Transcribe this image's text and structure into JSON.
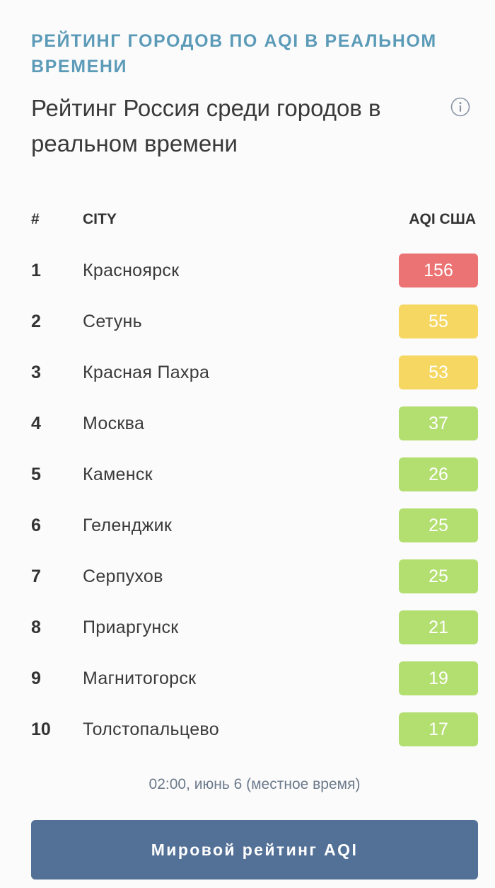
{
  "header": {
    "eyebrow": "Рейтинг городов по AQI в реальном времени",
    "title": "Рейтинг Россия среди городов в реальном времени"
  },
  "table": {
    "columns": {
      "rank": "#",
      "city": "CITY",
      "aqi": "AQI США"
    },
    "rows": [
      {
        "rank": "1",
        "city": "Красноярск",
        "aqi": "156",
        "color": "#ec7373"
      },
      {
        "rank": "2",
        "city": "Сетунь",
        "aqi": "55",
        "color": "#f6d762"
      },
      {
        "rank": "3",
        "city": "Красная Пахра",
        "aqi": "53",
        "color": "#f6d762"
      },
      {
        "rank": "4",
        "city": "Москва",
        "aqi": "37",
        "color": "#b3de70"
      },
      {
        "rank": "5",
        "city": "Каменск",
        "aqi": "26",
        "color": "#b3de70"
      },
      {
        "rank": "6",
        "city": "Геленджик",
        "aqi": "25",
        "color": "#b3de70"
      },
      {
        "rank": "7",
        "city": "Серпухов",
        "aqi": "25",
        "color": "#b3de70"
      },
      {
        "rank": "8",
        "city": "Приаргунск",
        "aqi": "21",
        "color": "#b3de70"
      },
      {
        "rank": "9",
        "city": "Магнитогорск",
        "aqi": "19",
        "color": "#b3de70"
      },
      {
        "rank": "10",
        "city": "Толстопальцево",
        "aqi": "17",
        "color": "#b3de70"
      }
    ]
  },
  "footer": {
    "timestamp": "02:00, июнь 6 (местное время)",
    "cta_label": "Мировой рейтинг AQI"
  },
  "icons": {
    "info": "info-icon"
  }
}
